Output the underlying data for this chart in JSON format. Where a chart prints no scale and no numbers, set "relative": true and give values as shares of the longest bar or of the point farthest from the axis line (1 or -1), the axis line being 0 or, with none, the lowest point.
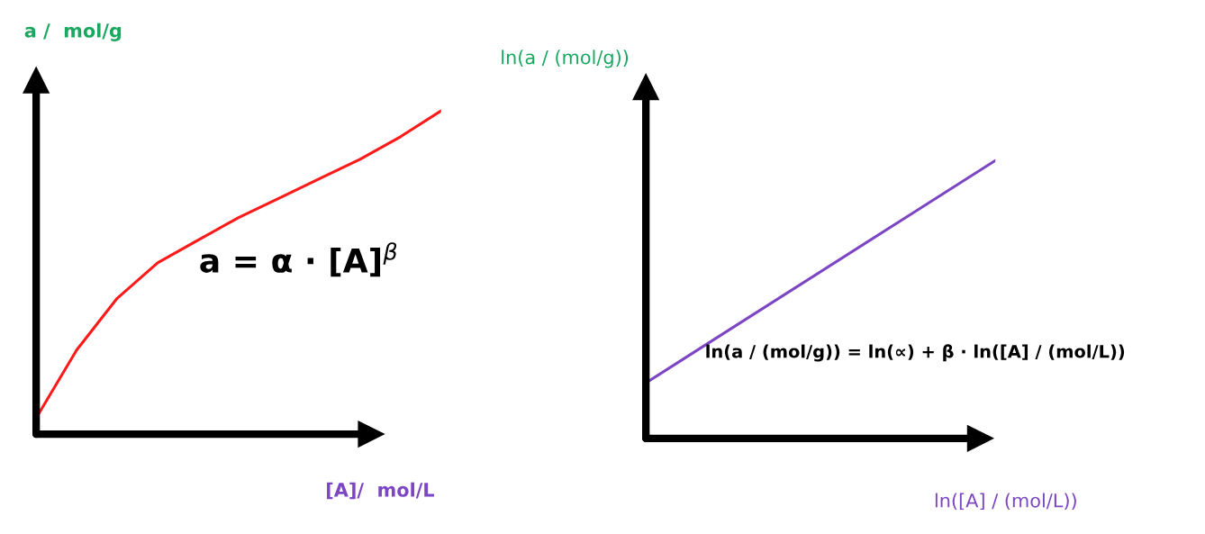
{
  "chart_data": [
    {
      "type": "line",
      "relative": true,
      "categories": [
        null,
        null,
        null,
        null,
        null,
        null,
        null,
        null,
        null,
        null,
        null
      ],
      "series": [
        {
          "color": "#ff1a1a",
          "values": [
            0.05,
            0.26,
            0.42,
            0.53,
            0.6,
            0.67,
            0.73,
            0.79,
            0.85,
            0.92,
            1.0
          ]
        }
      ],
      "ylabel": "a /  mol/g",
      "xlabel": "[A]/  mol/L",
      "annotations": [
        "a = α · [A]$^{β}$"
      ]
    },
    {
      "type": "line",
      "relative": true,
      "categories": [
        null,
        null
      ],
      "series": [
        {
          "color": "#7b45c4",
          "values": [
            0.2,
            1.0
          ]
        }
      ],
      "ylabel": "ln(a / (mol/g))",
      "xlabel": "ln([A] / (mol/L))",
      "annotations": [
        "ln(a / (mol/g)) = ln(∝) + β · ln([A] / (mol/L))"
      ]
    }
  ]
}
